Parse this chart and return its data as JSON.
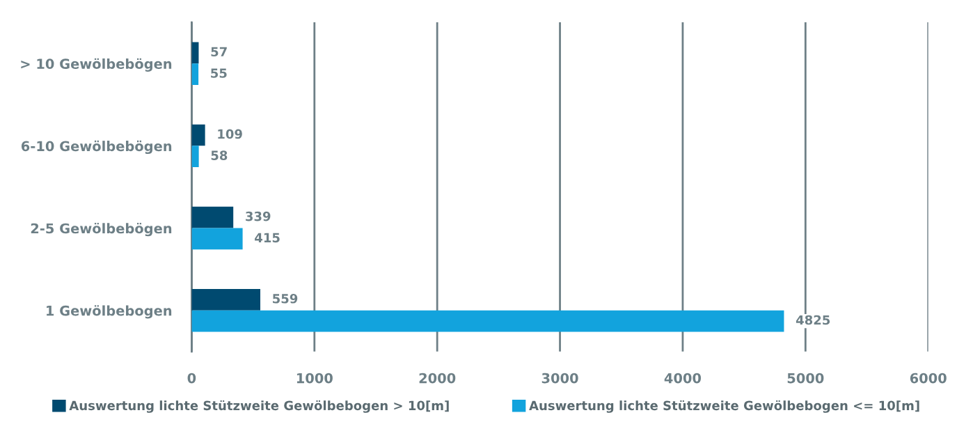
{
  "chart_data": {
    "type": "bar",
    "orientation": "horizontal",
    "categories": [
      "> 10 Gewölbebögen",
      "6-10 Gewölbebögen",
      "2-5 Gewölbebögen",
      "1 Gewölbebogen"
    ],
    "series": [
      {
        "name": "Auswertung lichte Stützweite Gewölbebogen > 10[m]",
        "color": "#004a70",
        "values": [
          57,
          109,
          339,
          559
        ]
      },
      {
        "name": "Auswertung lichte Stützweite Gewölbebogen <= 10[m]",
        "color": "#12a3dd",
        "values": [
          55,
          58,
          415,
          4825
        ]
      }
    ],
    "xlim": [
      0,
      6000
    ],
    "xticks": [
      0,
      1000,
      2000,
      3000,
      4000,
      5000,
      6000
    ],
    "grid": "x",
    "legend": "bottom",
    "data_labels": true
  }
}
